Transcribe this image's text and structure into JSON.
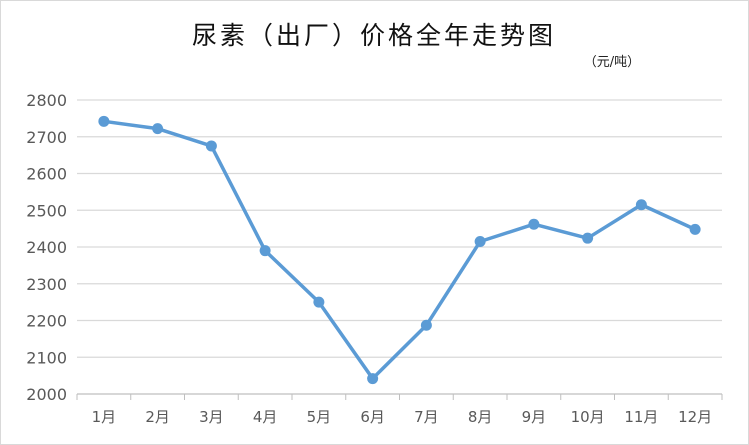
{
  "chart_data": {
    "type": "line",
    "title": "尿素（出厂）价格全年走势图",
    "unit_label": "（元/吨）",
    "categories": [
      "1月",
      "2月",
      "3月",
      "4月",
      "5月",
      "6月",
      "7月",
      "8月",
      "9月",
      "10月",
      "11月",
      "12月"
    ],
    "series": [
      {
        "values": [
          2742,
          2722,
          2675,
          2390,
          2250,
          2042,
          2187,
          2415,
          2462,
          2424,
          2515,
          2448
        ]
      }
    ],
    "ylim": [
      2000,
      2800
    ],
    "yticks": [
      2800,
      2700,
      2600,
      2500,
      2400,
      2300,
      2200,
      2100,
      2000
    ],
    "grid": true,
    "legend": "none",
    "colors": {
      "line": "#5b9bd5",
      "grid": "#d9d9d9",
      "axis": "#bfbfbf"
    }
  }
}
